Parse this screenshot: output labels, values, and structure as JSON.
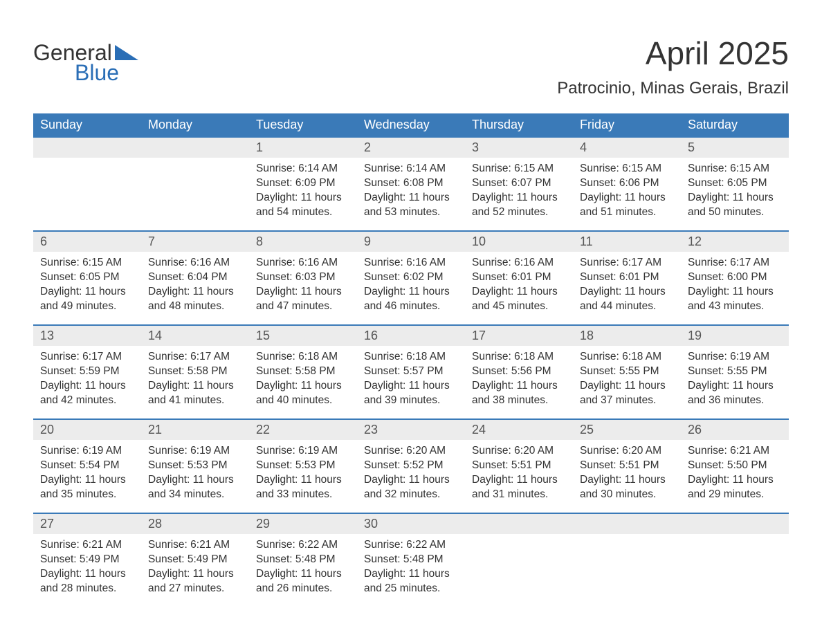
{
  "logo": {
    "word1": "General",
    "word2": "Blue",
    "tri_color": "#2a6eb6"
  },
  "title": "April 2025",
  "location": "Patrocinio, Minas Gerais, Brazil",
  "colors": {
    "header_bg": "#3a7ab8",
    "header_text": "#ffffff",
    "daynum_bg": "#ececec",
    "daynum_border": "#3a7ab8",
    "body_text": "#333333",
    "logo_blue": "#2a6eb6"
  },
  "weekdays": [
    "Sunday",
    "Monday",
    "Tuesday",
    "Wednesday",
    "Thursday",
    "Friday",
    "Saturday"
  ],
  "weeks": [
    [
      {
        "day": "",
        "sunrise": "",
        "sunset": "",
        "daylight": ""
      },
      {
        "day": "",
        "sunrise": "",
        "sunset": "",
        "daylight": ""
      },
      {
        "day": "1",
        "sunrise": "Sunrise: 6:14 AM",
        "sunset": "Sunset: 6:09 PM",
        "daylight": "Daylight: 11 hours and 54 minutes."
      },
      {
        "day": "2",
        "sunrise": "Sunrise: 6:14 AM",
        "sunset": "Sunset: 6:08 PM",
        "daylight": "Daylight: 11 hours and 53 minutes."
      },
      {
        "day": "3",
        "sunrise": "Sunrise: 6:15 AM",
        "sunset": "Sunset: 6:07 PM",
        "daylight": "Daylight: 11 hours and 52 minutes."
      },
      {
        "day": "4",
        "sunrise": "Sunrise: 6:15 AM",
        "sunset": "Sunset: 6:06 PM",
        "daylight": "Daylight: 11 hours and 51 minutes."
      },
      {
        "day": "5",
        "sunrise": "Sunrise: 6:15 AM",
        "sunset": "Sunset: 6:05 PM",
        "daylight": "Daylight: 11 hours and 50 minutes."
      }
    ],
    [
      {
        "day": "6",
        "sunrise": "Sunrise: 6:15 AM",
        "sunset": "Sunset: 6:05 PM",
        "daylight": "Daylight: 11 hours and 49 minutes."
      },
      {
        "day": "7",
        "sunrise": "Sunrise: 6:16 AM",
        "sunset": "Sunset: 6:04 PM",
        "daylight": "Daylight: 11 hours and 48 minutes."
      },
      {
        "day": "8",
        "sunrise": "Sunrise: 6:16 AM",
        "sunset": "Sunset: 6:03 PM",
        "daylight": "Daylight: 11 hours and 47 minutes."
      },
      {
        "day": "9",
        "sunrise": "Sunrise: 6:16 AM",
        "sunset": "Sunset: 6:02 PM",
        "daylight": "Daylight: 11 hours and 46 minutes."
      },
      {
        "day": "10",
        "sunrise": "Sunrise: 6:16 AM",
        "sunset": "Sunset: 6:01 PM",
        "daylight": "Daylight: 11 hours and 45 minutes."
      },
      {
        "day": "11",
        "sunrise": "Sunrise: 6:17 AM",
        "sunset": "Sunset: 6:01 PM",
        "daylight": "Daylight: 11 hours and 44 minutes."
      },
      {
        "day": "12",
        "sunrise": "Sunrise: 6:17 AM",
        "sunset": "Sunset: 6:00 PM",
        "daylight": "Daylight: 11 hours and 43 minutes."
      }
    ],
    [
      {
        "day": "13",
        "sunrise": "Sunrise: 6:17 AM",
        "sunset": "Sunset: 5:59 PM",
        "daylight": "Daylight: 11 hours and 42 minutes."
      },
      {
        "day": "14",
        "sunrise": "Sunrise: 6:17 AM",
        "sunset": "Sunset: 5:58 PM",
        "daylight": "Daylight: 11 hours and 41 minutes."
      },
      {
        "day": "15",
        "sunrise": "Sunrise: 6:18 AM",
        "sunset": "Sunset: 5:58 PM",
        "daylight": "Daylight: 11 hours and 40 minutes."
      },
      {
        "day": "16",
        "sunrise": "Sunrise: 6:18 AM",
        "sunset": "Sunset: 5:57 PM",
        "daylight": "Daylight: 11 hours and 39 minutes."
      },
      {
        "day": "17",
        "sunrise": "Sunrise: 6:18 AM",
        "sunset": "Sunset: 5:56 PM",
        "daylight": "Daylight: 11 hours and 38 minutes."
      },
      {
        "day": "18",
        "sunrise": "Sunrise: 6:18 AM",
        "sunset": "Sunset: 5:55 PM",
        "daylight": "Daylight: 11 hours and 37 minutes."
      },
      {
        "day": "19",
        "sunrise": "Sunrise: 6:19 AM",
        "sunset": "Sunset: 5:55 PM",
        "daylight": "Daylight: 11 hours and 36 minutes."
      }
    ],
    [
      {
        "day": "20",
        "sunrise": "Sunrise: 6:19 AM",
        "sunset": "Sunset: 5:54 PM",
        "daylight": "Daylight: 11 hours and 35 minutes."
      },
      {
        "day": "21",
        "sunrise": "Sunrise: 6:19 AM",
        "sunset": "Sunset: 5:53 PM",
        "daylight": "Daylight: 11 hours and 34 minutes."
      },
      {
        "day": "22",
        "sunrise": "Sunrise: 6:19 AM",
        "sunset": "Sunset: 5:53 PM",
        "daylight": "Daylight: 11 hours and 33 minutes."
      },
      {
        "day": "23",
        "sunrise": "Sunrise: 6:20 AM",
        "sunset": "Sunset: 5:52 PM",
        "daylight": "Daylight: 11 hours and 32 minutes."
      },
      {
        "day": "24",
        "sunrise": "Sunrise: 6:20 AM",
        "sunset": "Sunset: 5:51 PM",
        "daylight": "Daylight: 11 hours and 31 minutes."
      },
      {
        "day": "25",
        "sunrise": "Sunrise: 6:20 AM",
        "sunset": "Sunset: 5:51 PM",
        "daylight": "Daylight: 11 hours and 30 minutes."
      },
      {
        "day": "26",
        "sunrise": "Sunrise: 6:21 AM",
        "sunset": "Sunset: 5:50 PM",
        "daylight": "Daylight: 11 hours and 29 minutes."
      }
    ],
    [
      {
        "day": "27",
        "sunrise": "Sunrise: 6:21 AM",
        "sunset": "Sunset: 5:49 PM",
        "daylight": "Daylight: 11 hours and 28 minutes."
      },
      {
        "day": "28",
        "sunrise": "Sunrise: 6:21 AM",
        "sunset": "Sunset: 5:49 PM",
        "daylight": "Daylight: 11 hours and 27 minutes."
      },
      {
        "day": "29",
        "sunrise": "Sunrise: 6:22 AM",
        "sunset": "Sunset: 5:48 PM",
        "daylight": "Daylight: 11 hours and 26 minutes."
      },
      {
        "day": "30",
        "sunrise": "Sunrise: 6:22 AM",
        "sunset": "Sunset: 5:48 PM",
        "daylight": "Daylight: 11 hours and 25 minutes."
      },
      {
        "day": "",
        "sunrise": "",
        "sunset": "",
        "daylight": ""
      },
      {
        "day": "",
        "sunrise": "",
        "sunset": "",
        "daylight": ""
      },
      {
        "day": "",
        "sunrise": "",
        "sunset": "",
        "daylight": ""
      }
    ]
  ]
}
